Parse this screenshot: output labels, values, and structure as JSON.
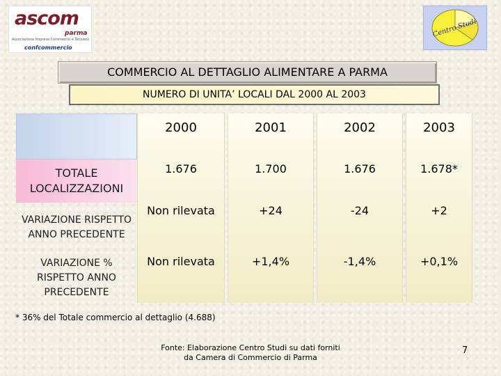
{
  "logos": {
    "ascom_wordmark": "ascom",
    "ascom_city": "parma",
    "ascom_tagline": "Associazione Imprese Commercio e Terziario",
    "ascom_network": "confcommercio",
    "centro_studi": "Centro Studi"
  },
  "title": "COMMERCIO AL DETTAGLIO ALIMENTARE A PARMA",
  "subtitle": "NUMERO DI UNITA’ LOCALI DAL 2000 AL 2003",
  "table": {
    "years": [
      "2000",
      "2001",
      "2002",
      "2003"
    ],
    "rows": [
      {
        "label": "TOTALE LOCALIZZAZIONI",
        "values": [
          "1.676",
          "1.700",
          "1.676",
          "1.678*"
        ]
      },
      {
        "label": "VARIAZIONE RISPETTO ANNO PRECEDENTE",
        "values": [
          "Non rilevata",
          "+24",
          "-24",
          "+2"
        ]
      },
      {
        "label": "VARIAZIONE % RISPETTO ANNO PRECEDENTE",
        "values": [
          "Non rilevata",
          "+1,4%",
          "-1,4%",
          "+0,1%"
        ]
      }
    ]
  },
  "footnote": "* 36% del Totale commercio al dettaglio (4.688)",
  "source_line1": "Fonte: Elaborazione Centro Studi su dati forniti",
  "source_line2": "da Camera di Commercio di Parma",
  "page_number": "7",
  "colors": {
    "logo_red": "#7b1d2c",
    "row_pink": "#f7b9d6",
    "header_blue": "#c4d4ea",
    "data_yellow": "#f1ecc5"
  }
}
